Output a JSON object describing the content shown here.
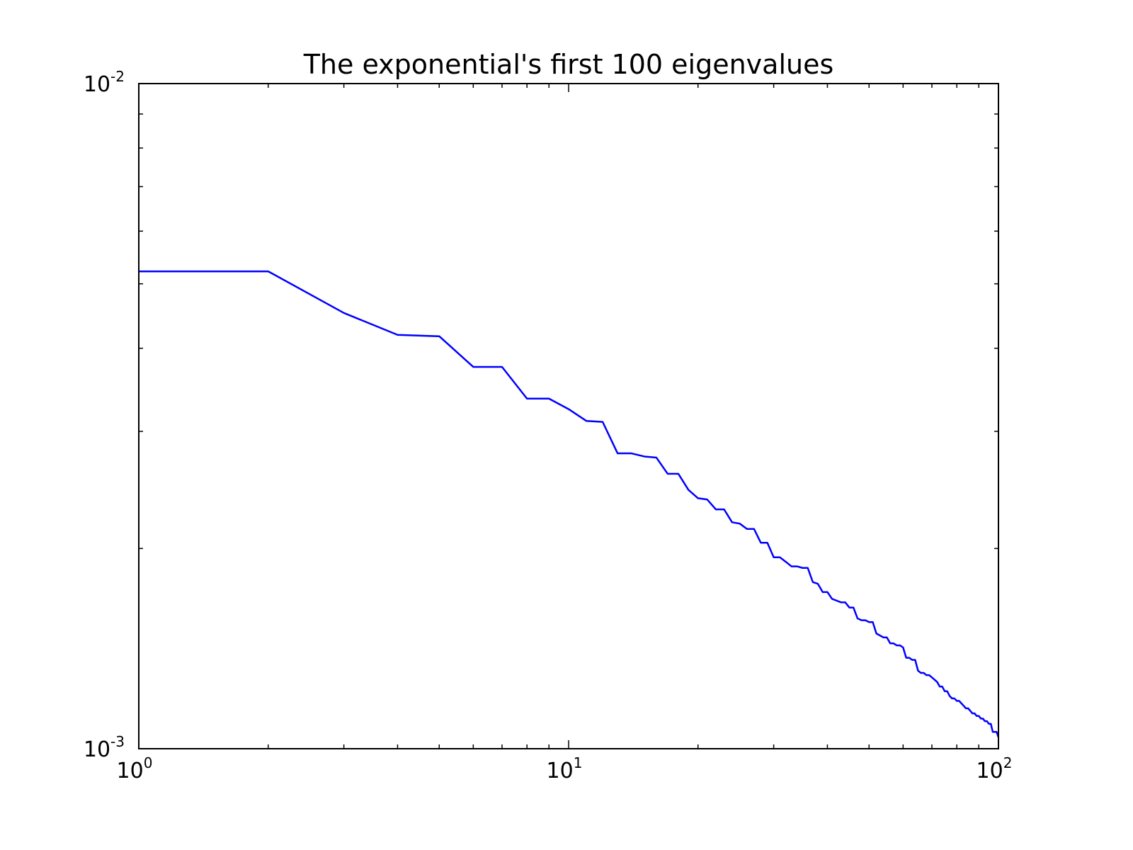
{
  "chart_data": {
    "type": "line",
    "title": "The exponential's first 100 eigenvalues",
    "log_x": true,
    "log_y": true,
    "xlim": [
      1,
      100
    ],
    "ylim": [
      0.001,
      0.01
    ],
    "xticks": [
      {
        "value": 1,
        "label": "10",
        "exponent": "0"
      },
      {
        "value": 10,
        "label": "10",
        "exponent": "1"
      },
      {
        "value": 100,
        "label": "10",
        "exponent": "2"
      }
    ],
    "yticks": [
      {
        "value": 0.001,
        "label": "10",
        "exponent": "-3"
      },
      {
        "value": 0.01,
        "label": "10",
        "exponent": "-2"
      }
    ],
    "xminorticks": [
      2,
      3,
      4,
      5,
      6,
      7,
      8,
      9,
      20,
      30,
      40,
      50,
      60,
      70,
      80,
      90
    ],
    "yminorticks": [
      0.002,
      0.003,
      0.004,
      0.005,
      0.006,
      0.007,
      0.008,
      0.009
    ],
    "x": [
      1,
      2,
      3,
      4,
      5,
      6,
      7,
      8,
      9,
      10,
      11,
      12,
      13,
      14,
      15,
      16,
      17,
      18,
      19,
      20,
      21,
      22,
      23,
      24,
      25,
      26,
      27,
      28,
      29,
      30,
      31,
      32,
      33,
      34,
      35,
      36,
      37,
      38,
      39,
      40,
      41,
      42,
      43,
      44,
      45,
      46,
      47,
      48,
      49,
      50,
      51,
      52,
      53,
      54,
      55,
      56,
      57,
      58,
      59,
      60,
      61,
      62,
      63,
      64,
      65,
      66,
      67,
      68,
      69,
      70,
      71,
      72,
      73,
      74,
      75,
      76,
      77,
      78,
      79,
      80,
      81,
      82,
      83,
      84,
      85,
      86,
      87,
      88,
      89,
      90,
      91,
      92,
      93,
      94,
      95,
      96,
      97,
      98,
      99,
      100
    ],
    "series": [
      {
        "color": "#0000ff",
        "values": [
          0.00522,
          0.00522,
          0.00452,
          0.00419,
          0.00417,
          0.00375,
          0.00375,
          0.00336,
          0.00336,
          0.00324,
          0.00311,
          0.0031,
          0.00278,
          0.00278,
          0.00275,
          0.00274,
          0.00259,
          0.00259,
          0.00245,
          0.00238,
          0.00237,
          0.00229,
          0.00229,
          0.00219,
          0.00218,
          0.00214,
          0.00214,
          0.00204,
          0.00204,
          0.00194,
          0.00194,
          0.00191,
          0.00188,
          0.00188,
          0.00187,
          0.00187,
          0.00178,
          0.00177,
          0.00172,
          0.00172,
          0.00168,
          0.00167,
          0.00166,
          0.00166,
          0.00163,
          0.00163,
          0.00157,
          0.00156,
          0.00156,
          0.00155,
          0.00155,
          0.00149,
          0.00148,
          0.00147,
          0.00147,
          0.00144,
          0.00144,
          0.00143,
          0.00143,
          0.00142,
          0.00137,
          0.00137,
          0.00136,
          0.00136,
          0.00131,
          0.0013,
          0.0013,
          0.00129,
          0.00129,
          0.00128,
          0.00127,
          0.00126,
          0.00124,
          0.00124,
          0.00122,
          0.00122,
          0.0012,
          0.00119,
          0.00119,
          0.00118,
          0.00118,
          0.00117,
          0.00116,
          0.00115,
          0.00115,
          0.00114,
          0.00113,
          0.00113,
          0.00112,
          0.00112,
          0.00111,
          0.00111,
          0.0011,
          0.0011,
          0.00109,
          0.00109,
          0.00106,
          0.00106,
          0.00106,
          0.00104
        ]
      }
    ]
  }
}
